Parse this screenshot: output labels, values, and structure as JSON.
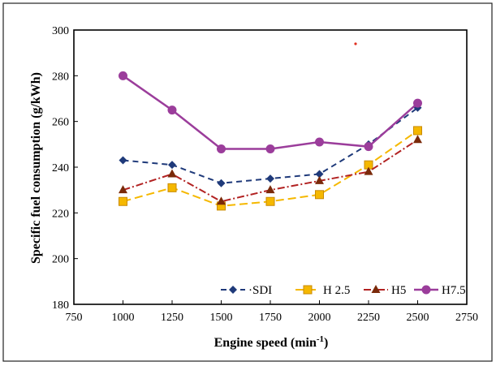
{
  "chart_data": {
    "type": "line",
    "xlabel": "Engine speed (min",
    "xlabel_sup": "-1",
    "xlabel_close": ")",
    "ylabel": "Specific fuel consumption (g/kWh)",
    "xlim": [
      750,
      2750
    ],
    "ylim": [
      180,
      300
    ],
    "xticks": [
      750,
      1000,
      1250,
      1500,
      1750,
      2000,
      2250,
      2500,
      2750
    ],
    "yticks": [
      180,
      200,
      220,
      240,
      260,
      280,
      300
    ],
    "x": [
      1000,
      1250,
      1500,
      1750,
      2000,
      2250,
      2500
    ],
    "grid": false,
    "legend_position": "bottom-right",
    "series": [
      {
        "name": "SDI",
        "legend_label": "·SDI",
        "values": [
          243,
          241,
          233,
          235,
          237,
          250,
          266
        ],
        "color": "#1f3a7a",
        "marker": "diamond",
        "dash": "7,5"
      },
      {
        "name": "H 2.5",
        "legend_label": "H 2.5",
        "values": [
          225,
          231,
          223,
          225,
          228,
          241,
          256
        ],
        "color": "#f5b800",
        "marker": "square",
        "dash": "10,5"
      },
      {
        "name": "H5",
        "legend_label": "H5",
        "values": [
          230,
          237,
          225,
          230,
          234,
          238,
          252
        ],
        "color": "#b22222",
        "marker": "triangle",
        "dash": "9,3,2,3"
      },
      {
        "name": "H7.5",
        "legend_label": "H7.5",
        "values": [
          280,
          265,
          248,
          248,
          251,
          249,
          268
        ],
        "color": "#9b3d9b",
        "marker": "circle",
        "dash": ""
      }
    ]
  }
}
